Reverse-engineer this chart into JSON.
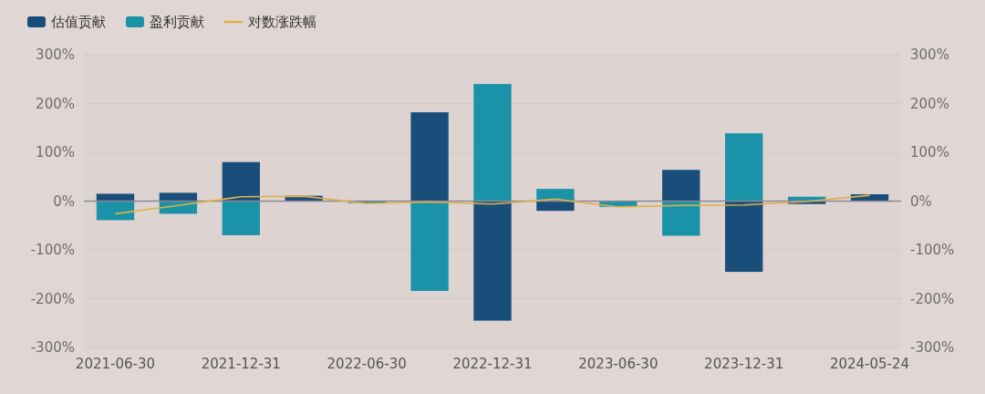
{
  "chart_data": {
    "type": "bar",
    "stacked": true,
    "legend": "top left",
    "grid": "y",
    "categories": [
      "2021-06-30",
      null,
      "2021-12-31",
      null,
      "2022-06-30",
      null,
      "2022-12-31",
      null,
      "2023-06-30",
      null,
      "2023-12-31",
      null,
      "2024-05-24"
    ],
    "series": [
      {
        "name": "估值贡献",
        "color": "#1a4e7a",
        "values": [
          15,
          17,
          80,
          11,
          0,
          182,
          -245,
          -20,
          -1,
          64,
          -145,
          -6,
          14
        ]
      },
      {
        "name": "盈利贡献",
        "color": "#1a93a8",
        "values": [
          -39,
          -26,
          -70,
          0,
          -4,
          -184,
          240,
          25,
          -11,
          -71,
          139,
          9,
          0
        ]
      },
      {
        "name": "对数涨跌幅",
        "type": "line",
        "color": "#e0b04a",
        "values": [
          -26,
          -9,
          9,
          10,
          -5,
          -2,
          -6,
          4,
          -12,
          -9,
          -8,
          -1,
          12
        ]
      }
    ],
    "ylim": [
      -300,
      300
    ],
    "yticks": [
      {
        "value": -300,
        "label": "-300%"
      },
      {
        "value": -200,
        "label": "-200%"
      },
      {
        "value": -100,
        "label": "-100%"
      },
      {
        "value": 0,
        "label": "0%"
      },
      {
        "value": 100,
        "label": "100%"
      },
      {
        "value": 200,
        "label": "200%"
      },
      {
        "value": 300,
        "label": "300%"
      }
    ],
    "y2lim": [
      -300,
      300
    ],
    "y2ticks": [
      {
        "value": -300,
        "label": "-300%"
      },
      {
        "value": -200,
        "label": "-200%"
      },
      {
        "value": -100,
        "label": "-100%"
      },
      {
        "value": 0,
        "label": "0%"
      },
      {
        "value": 100,
        "label": "100%"
      },
      {
        "value": 200,
        "label": "200%"
      },
      {
        "value": 300,
        "label": "300%"
      }
    ]
  }
}
